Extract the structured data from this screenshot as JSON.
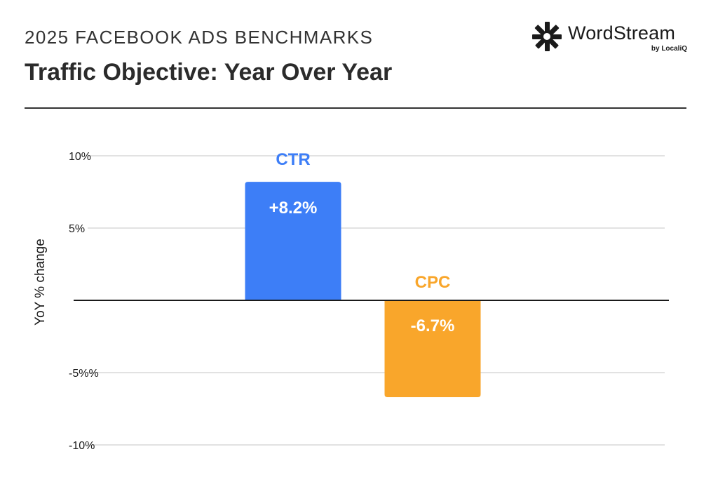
{
  "header": {
    "kicker": "2025 FACEBOOK ADS BENCHMARKS",
    "title": "Traffic Objective: Year Over Year"
  },
  "logo": {
    "wordmark": "WordStream",
    "byline": "by LocaliQ"
  },
  "colors": {
    "ctr": "#3d7ef7",
    "cpc": "#f9a62b",
    "grid": "#d9d9d9",
    "baseline": "#1a1a1a"
  },
  "chart_data": {
    "type": "bar",
    "categories": [
      "CTR",
      "CPC"
    ],
    "values": [
      8.2,
      -6.7
    ],
    "value_labels": [
      "+8.2%",
      "-6.7%"
    ],
    "ylabel": "YoY % change",
    "ylim": [
      -10,
      10
    ],
    "yticks": [
      {
        "value": 10,
        "label": "10%"
      },
      {
        "value": 5,
        "label": "5%"
      },
      {
        "value": -5,
        "label": "-5%%"
      },
      {
        "value": -10,
        "label": "-10%"
      }
    ],
    "grid": true,
    "legend": "none"
  }
}
